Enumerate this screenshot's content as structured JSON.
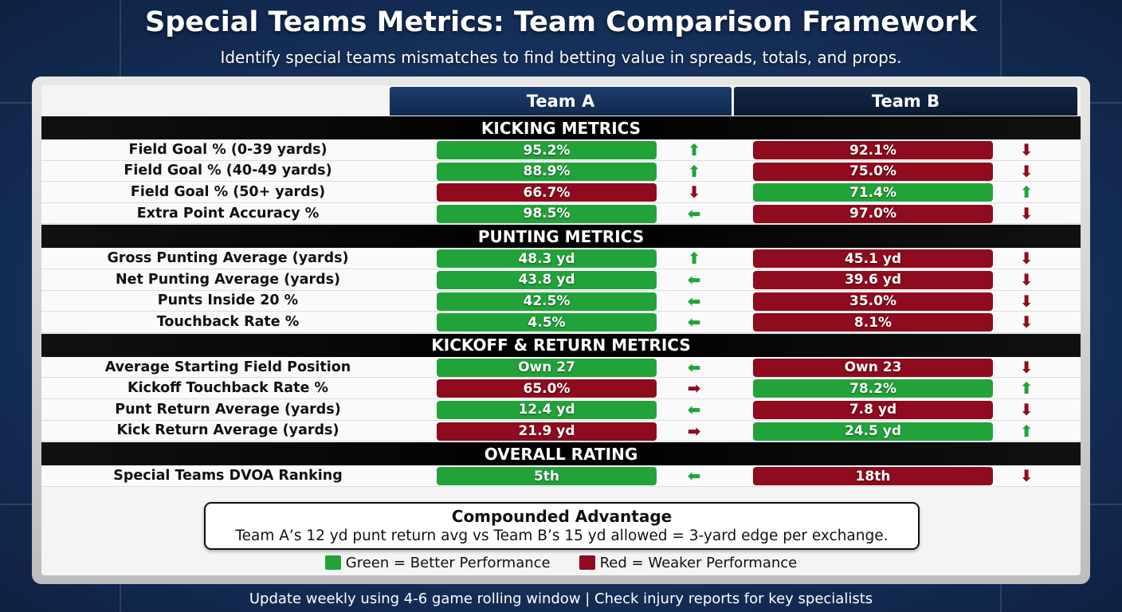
{
  "title": "Special Teams Metrics: Team Comparison Framework",
  "subtitle": "Identify special teams mismatches to find betting value in spreads, totals, and props.",
  "colors": {
    "better": "#22a33a",
    "weaker": "#8f0b1e",
    "background": "#17345e"
  },
  "teams": {
    "a": "Team A",
    "b": "Team B"
  },
  "sections": [
    {
      "title": "KICKING METRICS",
      "rows": [
        {
          "label": "Field Goal % (0-39 yards)",
          "a": "95.2%",
          "a_status": "better",
          "a_arrow": "up",
          "b": "92.1%",
          "b_status": "weaker",
          "b_arrow": "down"
        },
        {
          "label": "Field Goal % (40-49 yards)",
          "a": "88.9%",
          "a_status": "better",
          "a_arrow": "up",
          "b": "75.0%",
          "b_status": "weaker",
          "b_arrow": "down"
        },
        {
          "label": "Field Goal % (50+ yards)",
          "a": "66.7%",
          "a_status": "weaker",
          "a_arrow": "down",
          "b": "71.4%",
          "b_status": "better",
          "b_arrow": "up"
        },
        {
          "label": "Extra Point Accuracy %",
          "a": "98.5%",
          "a_status": "better",
          "a_arrow": "left",
          "b": "97.0%",
          "b_status": "weaker",
          "b_arrow": "down"
        }
      ]
    },
    {
      "title": "PUNTING METRICS",
      "rows": [
        {
          "label": "Gross Punting Average (yards)",
          "a": "48.3 yd",
          "a_status": "better",
          "a_arrow": "up",
          "b": "45.1 yd",
          "b_status": "weaker",
          "b_arrow": "down"
        },
        {
          "label": "Net Punting Average (yards)",
          "a": "43.8 yd",
          "a_status": "better",
          "a_arrow": "left",
          "b": "39.6 yd",
          "b_status": "weaker",
          "b_arrow": "down"
        },
        {
          "label": "Punts Inside 20 %",
          "a": "42.5%",
          "a_status": "better",
          "a_arrow": "left",
          "b": "35.0%",
          "b_status": "weaker",
          "b_arrow": "down"
        },
        {
          "label": "Touchback Rate %",
          "a": "4.5%",
          "a_status": "better",
          "a_arrow": "left",
          "b": "8.1%",
          "b_status": "weaker",
          "b_arrow": "down"
        }
      ]
    },
    {
      "title": "KICKOFF & RETURN METRICS",
      "rows": [
        {
          "label": "Average Starting Field Position",
          "a": "Own 27",
          "a_status": "better",
          "a_arrow": "left",
          "b": "Own 23",
          "b_status": "weaker",
          "b_arrow": "down"
        },
        {
          "label": "Kickoff Touchback Rate %",
          "a": "65.0%",
          "a_status": "weaker",
          "a_arrow": "right",
          "b": "78.2%",
          "b_status": "better",
          "b_arrow": "up"
        },
        {
          "label": "Punt Return Average (yards)",
          "a": "12.4 yd",
          "a_status": "better",
          "a_arrow": "left",
          "b": "7.8 yd",
          "b_status": "weaker",
          "b_arrow": "down"
        },
        {
          "label": "Kick Return Average (yards)",
          "a": "21.9 yd",
          "a_status": "weaker",
          "a_arrow": "right",
          "b": "24.5 yd",
          "b_status": "better",
          "b_arrow": "up"
        }
      ]
    },
    {
      "title": "OVERALL RATING",
      "rows": [
        {
          "label": "Special Teams DVOA Ranking",
          "a": "5th",
          "a_status": "better",
          "a_arrow": "left",
          "b": "18th",
          "b_status": "weaker",
          "b_arrow": "down"
        }
      ]
    }
  ],
  "callout": {
    "heading": "Compounded Advantage",
    "text": "Team A’s 12 yd punt return avg vs Team B’s 15 yd allowed = 3-yard edge per exchange."
  },
  "legend": {
    "green": "Green = Better Performance",
    "red": "Red = Weaker Performance"
  },
  "footer": "Update weekly using 4-6 game rolling window | Check injury reports for key specialists"
}
